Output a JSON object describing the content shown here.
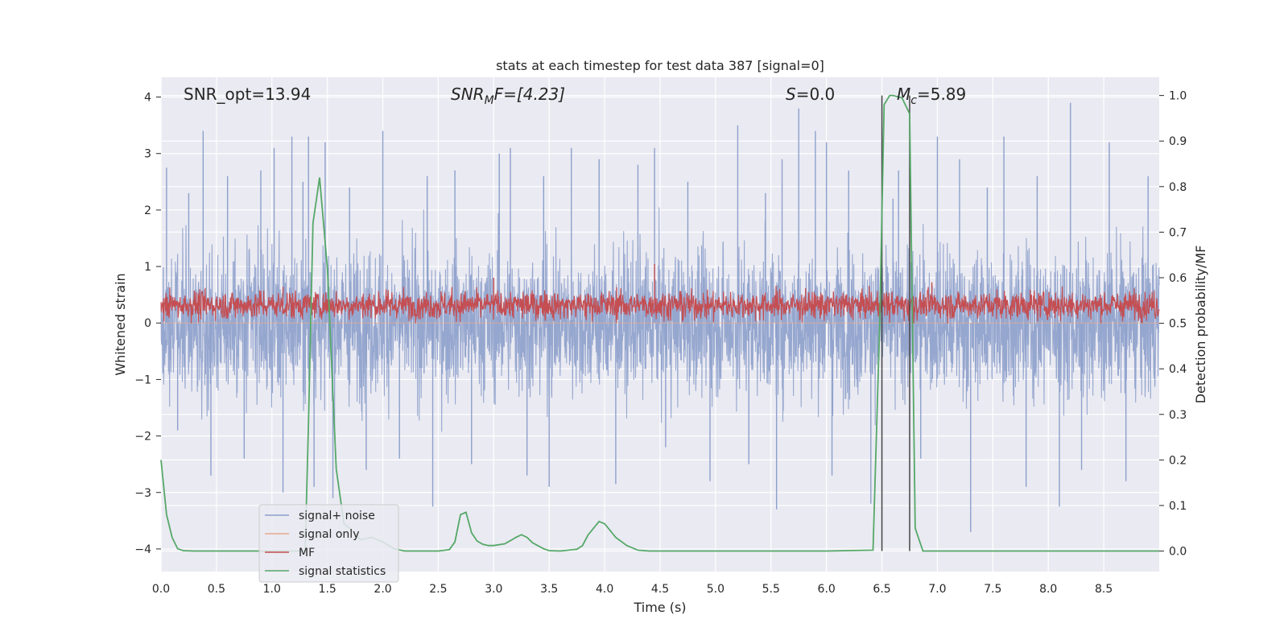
{
  "chart_data": {
    "type": "line",
    "title": "stats at each timestep for test data 387 [signal=0]",
    "xlabel": "Time (s)",
    "ylabel": "Whitened strain",
    "ylabel_right": "Detection probability/MF",
    "xlim": [
      0,
      9.0
    ],
    "ylim": [
      -4.4,
      4.35
    ],
    "ylim_right": [
      -0.045,
      1.04
    ],
    "x_ticks": [
      0.0,
      0.5,
      1.0,
      1.5,
      2.0,
      2.5,
      3.0,
      3.5,
      4.0,
      4.5,
      5.0,
      5.5,
      6.0,
      6.5,
      7.0,
      7.5,
      8.0,
      8.5
    ],
    "x_tick_labels": [
      "0.0",
      "0.5",
      "1.0",
      "1.5",
      "2.0",
      "2.5",
      "3.0",
      "3.5",
      "4.0",
      "4.5",
      "5.0",
      "5.5",
      "6.0",
      "6.5",
      "7.0",
      "7.5",
      "8.0",
      "8.5"
    ],
    "y_ticks": [
      4,
      3,
      2,
      1,
      0,
      -1,
      -2,
      -3,
      -4
    ],
    "y_tick_labels": [
      "4",
      "3",
      "2",
      "1",
      "0",
      "−1",
      "−2",
      "−3",
      "−4"
    ],
    "y_right_ticks": [
      1.0,
      0.9,
      0.8,
      0.7,
      0.6,
      0.5,
      0.4,
      0.3,
      0.2,
      0.1,
      0.0
    ],
    "y_right_tick_labels": [
      "1.0",
      "0.9",
      "0.8",
      "0.7",
      "0.6",
      "0.5",
      "0.4",
      "0.3",
      "0.2",
      "0.1",
      "0.0"
    ],
    "annotations": {
      "snr_opt": "SNR_opt=13.94",
      "snr_mf_main": "SNR",
      "snr_mf_sub": "M",
      "snr_mf_rest": "F=[4.23]",
      "s_main": "S",
      "s_rest": "=0.0",
      "mc_main": "M",
      "mc_sub": "c",
      "mc_rest": "=5.89"
    },
    "vlines": [
      6.5,
      6.75
    ],
    "colors": {
      "noise": "#8da0cb",
      "signal_only": "#e8a88c",
      "mf": "#c44e52",
      "stats": "#55a868",
      "vline": "#444444",
      "bg": "#eaeaf2",
      "grid": "#ffffff"
    },
    "legend": {
      "position": "lower-left",
      "entries": [
        {
          "label": "signal+ noise",
          "color": "#8da0cb"
        },
        {
          "label": "signal only",
          "color": "#e8a88c"
        },
        {
          "label": "MF",
          "color": "#c44e52"
        },
        {
          "label": "signal statistics",
          "color": "#55a868"
        }
      ]
    },
    "series": [
      {
        "name": "signal+ noise",
        "axis": "left",
        "style": "dense-noise",
        "x_range": [
          0,
          9.0
        ],
        "typical_envelope": [
          -1.6,
          1.6
        ],
        "peak_values": [
          [
            0.05,
            2.75
          ],
          [
            0.15,
            -1.9
          ],
          [
            0.25,
            2.3
          ],
          [
            0.38,
            3.4
          ],
          [
            0.45,
            -2.7
          ],
          [
            0.6,
            2.6
          ],
          [
            0.75,
            -2.4
          ],
          [
            0.9,
            2.7
          ],
          [
            1.02,
            3.1
          ],
          [
            1.1,
            -3.0
          ],
          [
            1.18,
            3.3
          ],
          [
            1.28,
            2.5
          ],
          [
            1.33,
            3.3
          ],
          [
            1.38,
            -2.9
          ],
          [
            1.48,
            3.2
          ],
          [
            1.55,
            -3.1
          ],
          [
            1.7,
            2.4
          ],
          [
            1.85,
            -2.6
          ],
          [
            2.0,
            3.4
          ],
          [
            2.15,
            -2.4
          ],
          [
            2.4,
            2.6
          ],
          [
            2.45,
            -3.25
          ],
          [
            2.65,
            2.7
          ],
          [
            2.8,
            -2.5
          ],
          [
            3.05,
            3.0
          ],
          [
            3.15,
            3.1
          ],
          [
            3.3,
            -2.7
          ],
          [
            3.45,
            2.6
          ],
          [
            3.5,
            -2.9
          ],
          [
            3.7,
            3.1
          ],
          [
            3.95,
            2.9
          ],
          [
            4.1,
            -2.85
          ],
          [
            4.3,
            2.8
          ],
          [
            4.45,
            3.1
          ],
          [
            4.55,
            -2.2
          ],
          [
            4.75,
            2.5
          ],
          [
            4.95,
            -2.8
          ],
          [
            5.2,
            3.5
          ],
          [
            5.3,
            -2.5
          ],
          [
            5.45,
            2.3
          ],
          [
            5.55,
            -3.3
          ],
          [
            5.6,
            2.9
          ],
          [
            5.75,
            3.8
          ],
          [
            5.9,
            3.4
          ],
          [
            6.0,
            3.2
          ],
          [
            6.05,
            -2.7
          ],
          [
            6.2,
            2.7
          ],
          [
            6.4,
            -3.2
          ],
          [
            6.6,
            2.2
          ],
          [
            6.65,
            2.7
          ],
          [
            6.85,
            -2.4
          ],
          [
            7.0,
            3.3
          ],
          [
            7.2,
            2.9
          ],
          [
            7.3,
            -3.7
          ],
          [
            7.45,
            2.4
          ],
          [
            7.6,
            3.3
          ],
          [
            7.8,
            -2.9
          ],
          [
            7.9,
            2.6
          ],
          [
            8.1,
            -3.25
          ],
          [
            8.2,
            3.9
          ],
          [
            8.3,
            -2.6
          ],
          [
            8.55,
            3.2
          ],
          [
            8.7,
            -2.8
          ],
          [
            8.9,
            2.6
          ]
        ]
      },
      {
        "name": "signal only",
        "axis": "left",
        "x": [
          0.0,
          9.0
        ],
        "y": [
          0.0,
          0.0
        ]
      },
      {
        "name": "MF",
        "axis": "right",
        "style": "dense-noise",
        "x_range": [
          0,
          9.0
        ],
        "baseline": 0.54,
        "typical_envelope": [
          0.5,
          0.62
        ],
        "peak_values": [
          [
            1.1,
            0.58
          ],
          [
            3.0,
            0.6
          ],
          [
            4.45,
            0.63
          ],
          [
            6.7,
            0.55
          ],
          [
            6.95,
            0.59
          ],
          [
            8.7,
            0.56
          ]
        ]
      },
      {
        "name": "signal statistics",
        "axis": "right",
        "x": [
          0.0,
          0.05,
          0.1,
          0.15,
          0.2,
          0.3,
          0.5,
          1.0,
          1.25,
          1.3,
          1.33,
          1.37,
          1.43,
          1.5,
          1.58,
          1.65,
          1.7,
          1.8,
          1.9,
          1.95,
          2.0,
          2.1,
          2.2,
          2.3,
          2.5,
          2.6,
          2.65,
          2.7,
          2.75,
          2.8,
          2.85,
          2.9,
          2.95,
          3.0,
          3.1,
          3.2,
          3.25,
          3.3,
          3.35,
          3.45,
          3.5,
          3.6,
          3.75,
          3.8,
          3.85,
          3.9,
          3.95,
          4.0,
          4.05,
          4.1,
          4.2,
          4.3,
          4.4,
          4.6,
          5.0,
          5.5,
          6.0,
          6.42,
          6.48,
          6.52,
          6.57,
          6.6,
          6.68,
          6.75,
          6.8,
          6.87,
          7.0,
          8.0,
          9.0
        ],
        "y": [
          0.2,
          0.08,
          0.03,
          0.005,
          0.001,
          0.0,
          0.0,
          0.0,
          0.0,
          0.0,
          0.28,
          0.72,
          0.82,
          0.62,
          0.18,
          0.06,
          0.05,
          0.025,
          0.03,
          0.025,
          0.02,
          0.005,
          0.0,
          0.0,
          0.0,
          0.003,
          0.02,
          0.08,
          0.085,
          0.04,
          0.022,
          0.015,
          0.012,
          0.012,
          0.016,
          0.03,
          0.036,
          0.03,
          0.018,
          0.005,
          0.001,
          0.0,
          0.004,
          0.012,
          0.035,
          0.05,
          0.065,
          0.06,
          0.045,
          0.03,
          0.012,
          0.002,
          0.0,
          0.0,
          0.0,
          0.0,
          0.0,
          0.002,
          0.5,
          0.98,
          1.0,
          1.0,
          0.995,
          0.96,
          0.05,
          0.0,
          0.0,
          0.0,
          0.0
        ]
      }
    ]
  }
}
